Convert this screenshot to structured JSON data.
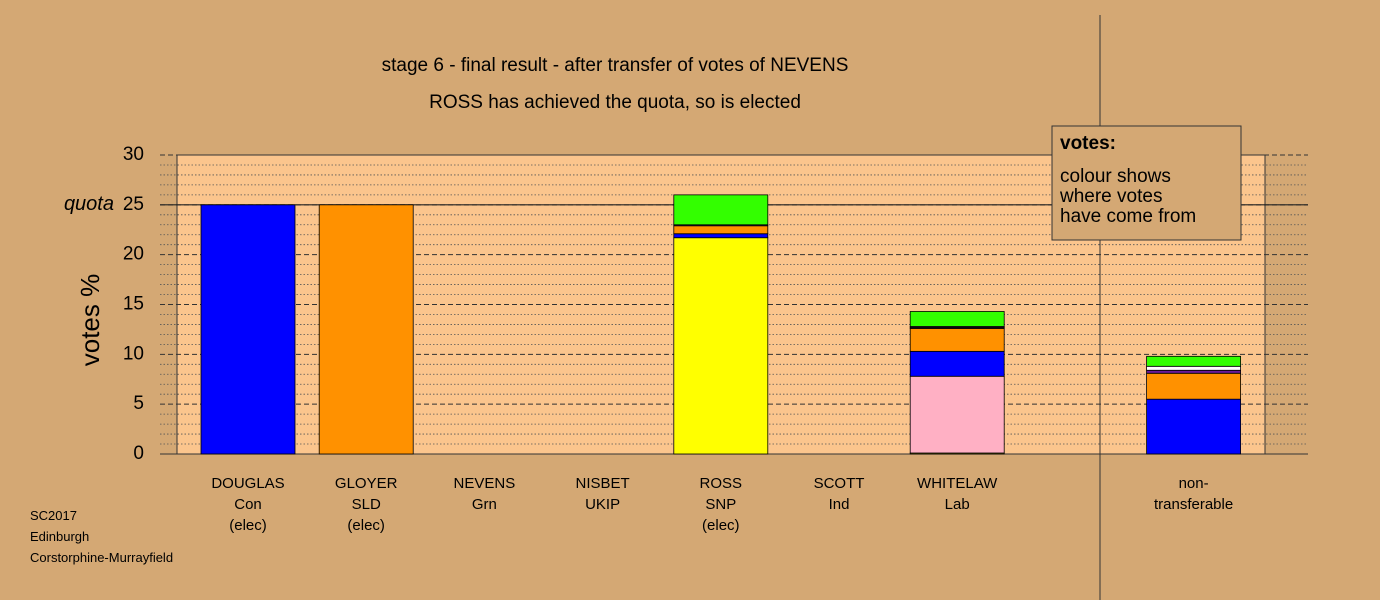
{
  "chart_data": {
    "type": "stacked_bar",
    "title": "stage 6 - final result - after transfer of votes of NEVENS",
    "subtitle": "ROSS has achieved the quota, so is elected",
    "y_label": "votes %",
    "categories": [
      "DOUGLAS\nCon\n(elec)",
      "GLOYER\nSLD\n(elec)",
      "NEVENS\nGrn",
      "NISBET\nUKIP",
      "ROSS\nSNP\n(elec)",
      "SCOTT\nInd",
      "WHITELAW\nLab",
      null,
      "non-\ntransferable"
    ],
    "series": [
      {
        "color": "#ffff00",
        "values": [
          0,
          0,
          0,
          0,
          21.7,
          0,
          0.1,
          null,
          0
        ]
      },
      {
        "color": "#ffb0c4",
        "values": [
          0,
          0,
          0,
          0,
          0,
          0,
          7.7,
          null,
          0
        ]
      },
      {
        "color": "#0000ff",
        "values": [
          25,
          0,
          0,
          0,
          0.4,
          0,
          2.5,
          null,
          5.5
        ]
      },
      {
        "color": "#ff9100",
        "values": [
          0,
          25,
          0,
          0,
          0.8,
          0,
          2.3,
          null,
          2.6
        ]
      },
      {
        "color": "#6a1a9a",
        "values": [
          0,
          0,
          0,
          0,
          0.1,
          0,
          0.1,
          null,
          0.3
        ]
      },
      {
        "color": "#ffffff",
        "values": [
          0,
          0,
          0,
          0,
          0,
          0,
          0.1,
          null,
          0.4
        ]
      },
      {
        "color": "#33ff00",
        "values": [
          0,
          0,
          0,
          0,
          3.0,
          0,
          1.5,
          null,
          1.0
        ]
      }
    ],
    "ylim": [
      0,
      30
    ],
    "yticks": [
      0,
      5,
      10,
      15,
      20,
      25,
      30
    ],
    "minor_yticks": [
      1,
      2,
      3,
      4,
      6,
      7,
      8,
      9,
      11,
      12,
      13,
      14,
      16,
      17,
      18,
      19,
      21,
      22,
      23,
      24,
      26,
      27,
      28,
      29
    ],
    "quota": {
      "value": 25,
      "label": "quota"
    },
    "grid": true,
    "legend_title": "votes:",
    "legend_text": "colour shows\nwhere votes\nhave come from",
    "footnote": "SC2017\nEdinburgh\nCorstorphine-Murrayfield"
  }
}
